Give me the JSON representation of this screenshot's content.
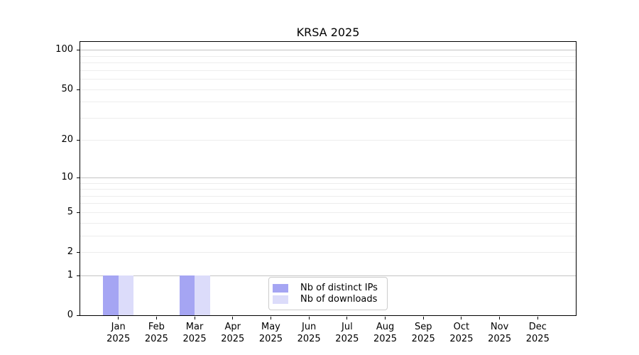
{
  "title": "KRSA 2025",
  "chart_data": {
    "type": "bar",
    "title": "KRSA 2025",
    "categories": [
      "Jan",
      "Feb",
      "Mar",
      "Apr",
      "May",
      "Jun",
      "Jul",
      "Aug",
      "Sep",
      "Oct",
      "Nov",
      "Dec"
    ],
    "year_label": "2025",
    "series": [
      {
        "name": "Nb of distinct IPs",
        "color": "#a5a5f3",
        "values": [
          1,
          0,
          1,
          0,
          0,
          0,
          0,
          0,
          0,
          0,
          0,
          0
        ]
      },
      {
        "name": "Nb of downloads",
        "color": "#dcdcfa",
        "values": [
          1,
          0,
          1,
          0,
          0,
          0,
          0,
          0,
          0,
          0,
          0,
          0
        ]
      }
    ],
    "xlabel": "",
    "ylabel": "",
    "yscale": "log1p",
    "ylim": [
      0,
      115
    ],
    "yticks": [
      0,
      1,
      2,
      5,
      10,
      20,
      50,
      100
    ],
    "major_gridline_values": [
      1,
      10,
      100
    ],
    "minor_gridline_values": [
      2,
      3,
      4,
      5,
      6,
      7,
      8,
      9,
      20,
      30,
      40,
      50,
      60,
      70,
      80,
      90
    ],
    "grid": true,
    "legend_position": "bottom-center",
    "colors": {
      "major_grid": "#c3c3c3",
      "minor_grid": "#ededed",
      "spine": "#000000",
      "legend_border": "#cccccc",
      "text": "#000000",
      "background": "#ffffff"
    }
  }
}
